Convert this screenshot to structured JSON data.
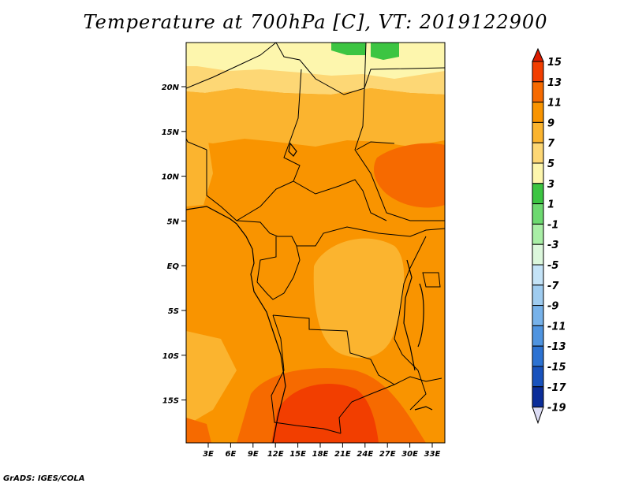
{
  "title": "Temperature at 700hPa [C], VT: 2019122900",
  "footer": "GrADS: IGES/COLA",
  "map": {
    "lat_labels": [
      "20N",
      "15N",
      "10N",
      "5N",
      "EQ",
      "5S",
      "10S",
      "15S"
    ],
    "lon_labels": [
      "3E",
      "6E",
      "9E",
      "12E",
      "15E",
      "18E",
      "21E",
      "24E",
      "27E",
      "30E",
      "33E"
    ]
  },
  "colorbar": {
    "levels": [
      "15",
      "13",
      "11",
      "9",
      "7",
      "5",
      "3",
      "1",
      "-1",
      "-3",
      "-5",
      "-7",
      "-9",
      "-11",
      "-13",
      "-15",
      "-17",
      "-19"
    ],
    "colors": [
      "#dd1c00",
      "#f23e00",
      "#f66a00",
      "#f99400",
      "#fbb42f",
      "#fdd775",
      "#fdf6ad",
      "#3cc542",
      "#6dd970",
      "#a9eea6",
      "#dcf7dc",
      "#c4e3f7",
      "#9fccf0",
      "#77b2ea",
      "#4f94e0",
      "#2c72d2",
      "#1852bd",
      "#0b2d99",
      "#04106b"
    ],
    "top_arrow_color": "#dd1c00",
    "bottom_arrow_color": "#ddddf5"
  },
  "field_colors": {
    "c13": "#f23e00",
    "c11": "#f66a00",
    "c9": "#f99400",
    "c7": "#fbb42f",
    "c5": "#fdd775",
    "c3": "#fdf6ad",
    "green": "#3cc542"
  }
}
